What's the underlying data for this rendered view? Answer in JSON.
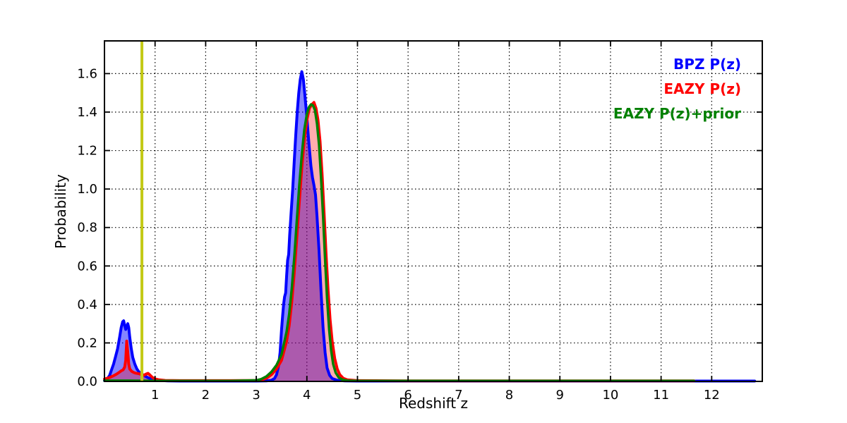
{
  "chart_data": {
    "type": "line",
    "title": "",
    "xlabel": "Redshift z",
    "ylabel": "Probability",
    "xlim": [
      0,
      13.0
    ],
    "ylim": [
      0,
      1.77
    ],
    "xticks": [
      1,
      2,
      3,
      4,
      5,
      6,
      7,
      8,
      9,
      10,
      11,
      12
    ],
    "yticks": [
      0.0,
      0.2,
      0.4,
      0.6,
      0.8,
      1.0,
      1.2,
      1.4,
      1.6
    ],
    "grid": {
      "on": true,
      "style": "dotted",
      "color": "#000000"
    },
    "legend_position": "upper-right-text-only",
    "axis_color": "#000000",
    "vline": {
      "x": 0.74,
      "color": "#c3c916",
      "linewidth": 4
    },
    "series": [
      {
        "name": "BPZ P(z)",
        "color": "#0000ff",
        "fill": "rgba(0,0,255,0.48)",
        "linewidth": 4,
        "points": [
          [
            0.0,
            0.004
          ],
          [
            0.05,
            0.012
          ],
          [
            0.1,
            0.03
          ],
          [
            0.14,
            0.06
          ],
          [
            0.18,
            0.09
          ],
          [
            0.22,
            0.13
          ],
          [
            0.26,
            0.17
          ],
          [
            0.3,
            0.23
          ],
          [
            0.33,
            0.28
          ],
          [
            0.36,
            0.31
          ],
          [
            0.38,
            0.315
          ],
          [
            0.4,
            0.29
          ],
          [
            0.42,
            0.27
          ],
          [
            0.44,
            0.285
          ],
          [
            0.46,
            0.3
          ],
          [
            0.48,
            0.28
          ],
          [
            0.5,
            0.23
          ],
          [
            0.53,
            0.17
          ],
          [
            0.56,
            0.125
          ],
          [
            0.6,
            0.09
          ],
          [
            0.64,
            0.065
          ],
          [
            0.68,
            0.05
          ],
          [
            0.72,
            0.042
          ],
          [
            0.76,
            0.035
          ],
          [
            0.8,
            0.028
          ],
          [
            0.85,
            0.021
          ],
          [
            0.9,
            0.015
          ],
          [
            0.95,
            0.012
          ],
          [
            1.0,
            0.009
          ],
          [
            1.1,
            0.005
          ],
          [
            1.25,
            0.003
          ],
          [
            1.5,
            0.002
          ],
          [
            2.0,
            0.002
          ],
          [
            2.5,
            0.002
          ],
          [
            3.0,
            0.002
          ],
          [
            3.2,
            0.003
          ],
          [
            3.3,
            0.006
          ],
          [
            3.36,
            0.015
          ],
          [
            3.4,
            0.035
          ],
          [
            3.44,
            0.08
          ],
          [
            3.47,
            0.15
          ],
          [
            3.5,
            0.27
          ],
          [
            3.52,
            0.34
          ],
          [
            3.54,
            0.4
          ],
          [
            3.56,
            0.44
          ],
          [
            3.58,
            0.46
          ],
          [
            3.6,
            0.55
          ],
          [
            3.62,
            0.63
          ],
          [
            3.64,
            0.66
          ],
          [
            3.66,
            0.76
          ],
          [
            3.69,
            0.88
          ],
          [
            3.72,
            1.0
          ],
          [
            3.75,
            1.14
          ],
          [
            3.78,
            1.28
          ],
          [
            3.81,
            1.4
          ],
          [
            3.84,
            1.5
          ],
          [
            3.87,
            1.57
          ],
          [
            3.9,
            1.61
          ],
          [
            3.93,
            1.57
          ],
          [
            3.96,
            1.49
          ],
          [
            4.0,
            1.37
          ],
          [
            4.04,
            1.24
          ],
          [
            4.08,
            1.12
          ],
          [
            4.11,
            1.06
          ],
          [
            4.14,
            1.02
          ],
          [
            4.17,
            0.97
          ],
          [
            4.2,
            0.86
          ],
          [
            4.24,
            0.68
          ],
          [
            4.28,
            0.47
          ],
          [
            4.32,
            0.28
          ],
          [
            4.36,
            0.15
          ],
          [
            4.4,
            0.07
          ],
          [
            4.45,
            0.032
          ],
          [
            4.5,
            0.015
          ],
          [
            4.6,
            0.006
          ],
          [
            4.75,
            0.003
          ],
          [
            5.0,
            0.002
          ],
          [
            6.0,
            0.002
          ],
          [
            8.0,
            0.002
          ],
          [
            10.0,
            0.002
          ],
          [
            12.85,
            0.002
          ]
        ]
      },
      {
        "name": "EAZY P(z)",
        "color": "#ff0000",
        "fill": "rgba(255,0,0,0.32)",
        "linewidth": 4,
        "points": [
          [
            0.0,
            0.012
          ],
          [
            0.1,
            0.02
          ],
          [
            0.16,
            0.027
          ],
          [
            0.22,
            0.035
          ],
          [
            0.28,
            0.045
          ],
          [
            0.33,
            0.055
          ],
          [
            0.37,
            0.06
          ],
          [
            0.4,
            0.075
          ],
          [
            0.42,
            0.11
          ],
          [
            0.44,
            0.21
          ],
          [
            0.46,
            0.155
          ],
          [
            0.48,
            0.09
          ],
          [
            0.5,
            0.065
          ],
          [
            0.54,
            0.052
          ],
          [
            0.58,
            0.046
          ],
          [
            0.62,
            0.043
          ],
          [
            0.66,
            0.041
          ],
          [
            0.7,
            0.039
          ],
          [
            0.74,
            0.033
          ],
          [
            0.78,
            0.032
          ],
          [
            0.82,
            0.038
          ],
          [
            0.86,
            0.042
          ],
          [
            0.9,
            0.033
          ],
          [
            0.95,
            0.02
          ],
          [
            1.0,
            0.013
          ],
          [
            1.08,
            0.008
          ],
          [
            1.2,
            0.005
          ],
          [
            1.5,
            0.004
          ],
          [
            2.0,
            0.004
          ],
          [
            2.5,
            0.004
          ],
          [
            3.0,
            0.005
          ],
          [
            3.1,
            0.008
          ],
          [
            3.2,
            0.016
          ],
          [
            3.3,
            0.035
          ],
          [
            3.4,
            0.065
          ],
          [
            3.5,
            0.11
          ],
          [
            3.6,
            0.21
          ],
          [
            3.65,
            0.29
          ],
          [
            3.7,
            0.41
          ],
          [
            3.75,
            0.56
          ],
          [
            3.8,
            0.74
          ],
          [
            3.85,
            0.93
          ],
          [
            3.9,
            1.11
          ],
          [
            3.95,
            1.26
          ],
          [
            4.0,
            1.36
          ],
          [
            4.05,
            1.42
          ],
          [
            4.1,
            1.44
          ],
          [
            4.14,
            1.45
          ],
          [
            4.18,
            1.42
          ],
          [
            4.22,
            1.36
          ],
          [
            4.26,
            1.25
          ],
          [
            4.3,
            1.08
          ],
          [
            4.34,
            0.88
          ],
          [
            4.38,
            0.66
          ],
          [
            4.42,
            0.47
          ],
          [
            4.46,
            0.32
          ],
          [
            4.5,
            0.21
          ],
          [
            4.55,
            0.12
          ],
          [
            4.6,
            0.065
          ],
          [
            4.65,
            0.035
          ],
          [
            4.72,
            0.016
          ],
          [
            4.8,
            0.008
          ],
          [
            5.0,
            0.004
          ],
          [
            6.0,
            0.003
          ],
          [
            8.0,
            0.003
          ],
          [
            10.0,
            0.003
          ],
          [
            11.65,
            0.003
          ]
        ]
      },
      {
        "name": "EAZY P(z)+prior",
        "color": "#008000",
        "fill": null,
        "linewidth": 3.5,
        "points": [
          [
            0.0,
            0.004
          ],
          [
            0.5,
            0.004
          ],
          [
            1.0,
            0.003
          ],
          [
            1.5,
            0.003
          ],
          [
            2.0,
            0.003
          ],
          [
            2.5,
            0.003
          ],
          [
            3.0,
            0.006
          ],
          [
            3.1,
            0.012
          ],
          [
            3.2,
            0.026
          ],
          [
            3.3,
            0.05
          ],
          [
            3.4,
            0.085
          ],
          [
            3.5,
            0.14
          ],
          [
            3.6,
            0.26
          ],
          [
            3.65,
            0.35
          ],
          [
            3.7,
            0.48
          ],
          [
            3.75,
            0.64
          ],
          [
            3.8,
            0.83
          ],
          [
            3.85,
            1.02
          ],
          [
            3.9,
            1.18
          ],
          [
            3.95,
            1.31
          ],
          [
            4.0,
            1.39
          ],
          [
            4.04,
            1.425
          ],
          [
            4.08,
            1.44
          ],
          [
            4.12,
            1.435
          ],
          [
            4.16,
            1.41
          ],
          [
            4.2,
            1.34
          ],
          [
            4.24,
            1.23
          ],
          [
            4.28,
            1.06
          ],
          [
            4.32,
            0.86
          ],
          [
            4.36,
            0.63
          ],
          [
            4.4,
            0.43
          ],
          [
            4.44,
            0.27
          ],
          [
            4.48,
            0.16
          ],
          [
            4.52,
            0.09
          ],
          [
            4.57,
            0.045
          ],
          [
            4.63,
            0.02
          ],
          [
            4.7,
            0.009
          ],
          [
            4.8,
            0.004
          ],
          [
            5.0,
            0.003
          ],
          [
            6.0,
            0.003
          ],
          [
            8.0,
            0.003
          ],
          [
            10.0,
            0.003
          ],
          [
            11.65,
            0.003
          ]
        ]
      }
    ]
  },
  "legend": {
    "entries": [
      {
        "label": "BPZ P(z)",
        "color": "#0000ff"
      },
      {
        "label": "EAZY P(z)",
        "color": "#ff0000"
      },
      {
        "label": "EAZY P(z)+prior",
        "color": "#008000"
      }
    ]
  }
}
